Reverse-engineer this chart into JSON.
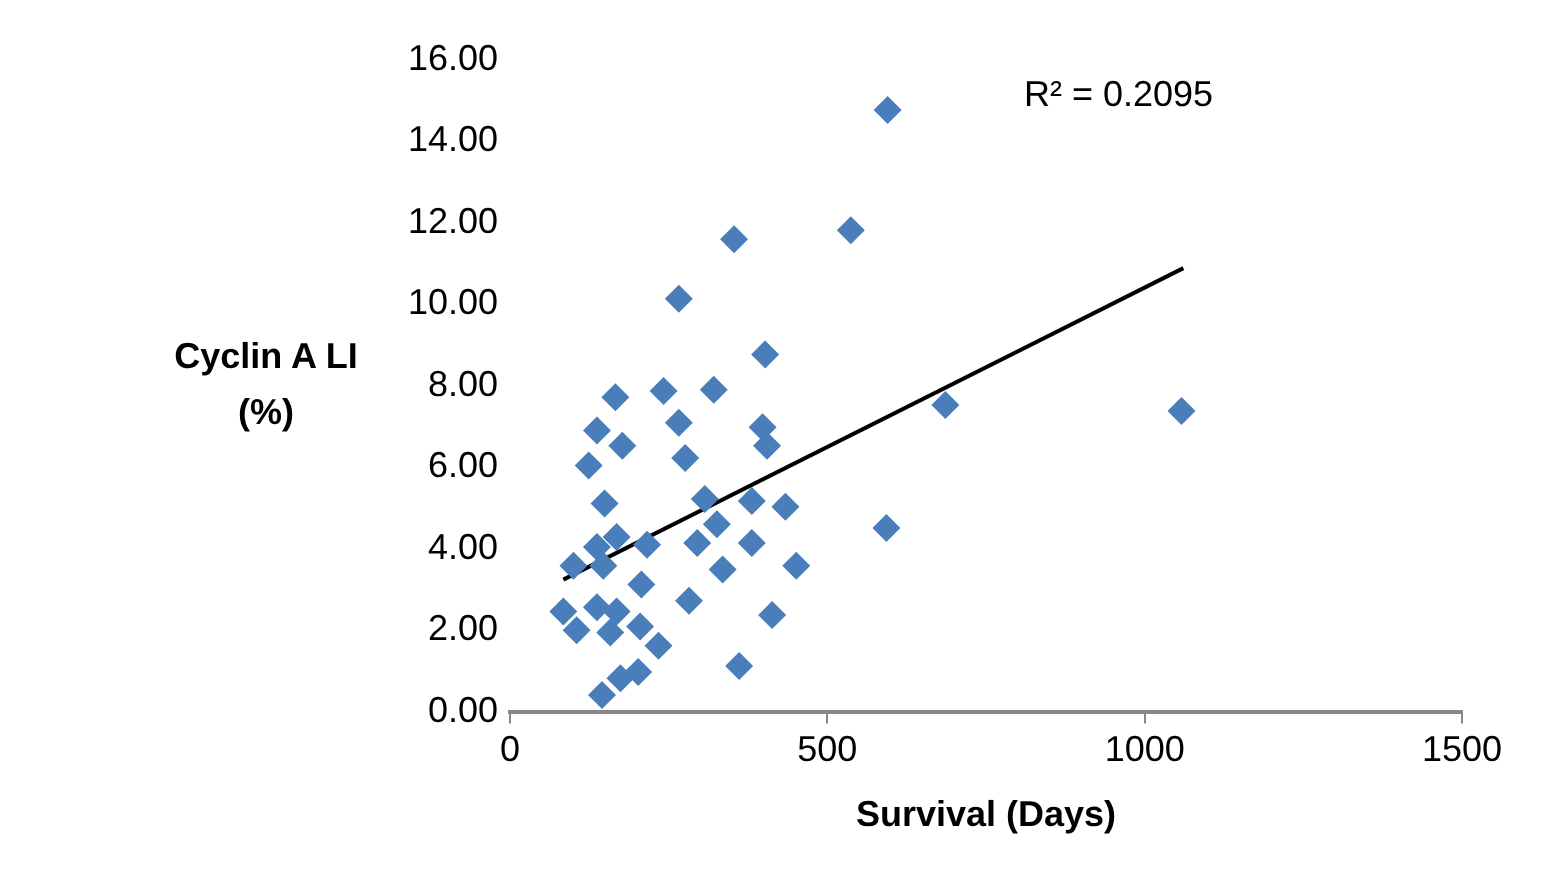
{
  "chart_data": {
    "type": "scatter",
    "xlabel": "Survival (Days)",
    "ylabel": "Cyclin A LI (%)",
    "annotations": [
      "R² = 0.2095"
    ],
    "xlim": [
      0,
      1500
    ],
    "xticks": [
      0,
      500,
      1000,
      1500
    ],
    "ylim": [
      0,
      16
    ],
    "yticks": [
      {
        "value": 0,
        "label": "0.00"
      },
      {
        "value": 2,
        "label": "2.00"
      },
      {
        "value": 4,
        "label": "4.00"
      },
      {
        "value": 6,
        "label": "6.00"
      },
      {
        "value": 8,
        "label": "8.00"
      },
      {
        "value": 10,
        "label": "10.00"
      },
      {
        "value": 12,
        "label": "12.00"
      },
      {
        "value": 14,
        "label": "14.00"
      },
      {
        "value": 16,
        "label": "16.00"
      }
    ],
    "grid": false,
    "legend": false,
    "marker": "diamond",
    "series": [
      {
        "color": "#4a7ebb",
        "x": [
          595,
          537,
          353,
          266,
          402,
          166,
          242,
          321,
          137,
          266,
          398,
          177,
          276,
          405,
          124,
          686,
          1058,
          149,
          307,
          381,
          434,
          326,
          295,
          381,
          216,
          168,
          137,
          100,
          147,
          335,
          451,
          593,
          207,
          282,
          413,
          84,
          137,
          168,
          105,
          158,
          205,
          234,
          361,
          202,
          174,
          145
        ],
        "values": [
          14.77,
          11.82,
          11.6,
          10.14,
          8.77,
          7.72,
          7.87,
          7.9,
          6.9,
          7.09,
          6.98,
          6.53,
          6.23,
          6.53,
          6.04,
          7.53,
          7.38,
          5.11,
          5.22,
          5.17,
          5.03,
          4.6,
          4.14,
          4.14,
          4.1,
          4.29,
          4.04,
          3.58,
          3.58,
          3.49,
          3.58,
          4.51,
          3.12,
          2.72,
          2.37,
          2.46,
          2.56,
          2.46,
          2.0,
          1.94,
          2.09,
          1.62,
          1.12,
          0.97,
          0.82,
          0.41
        ]
      },
      {
        "type": "line",
        "color": "#000000",
        "marker": "none",
        "x": [
          84,
          1061
        ],
        "values": [
          3.24,
          10.89
        ]
      }
    ]
  }
}
